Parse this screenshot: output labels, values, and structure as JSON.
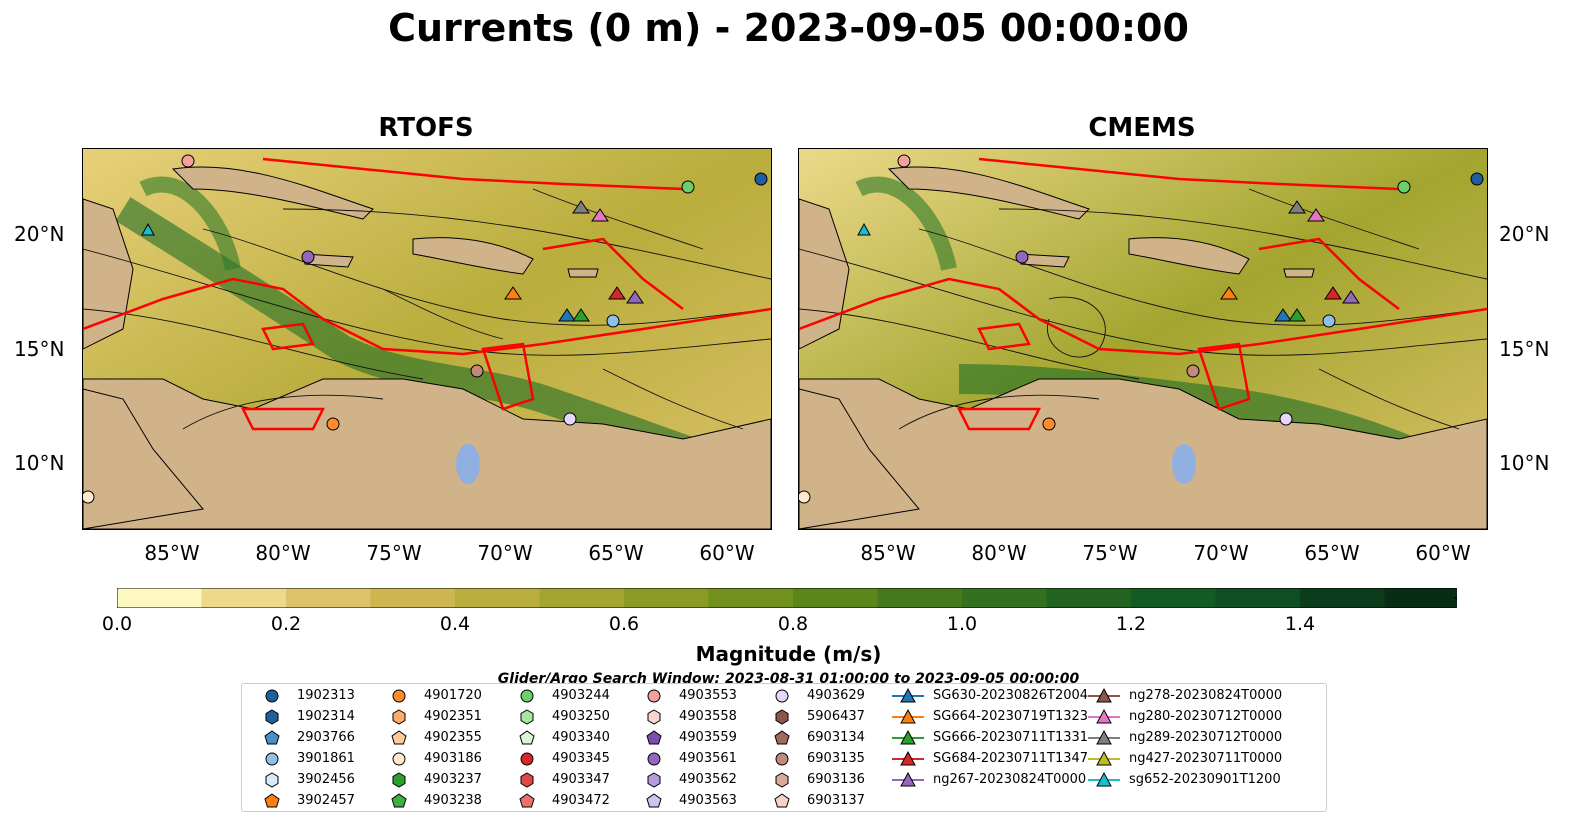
{
  "title": "Currents (0 m) - 2023-09-05 00:00:00",
  "panels": [
    {
      "title": "RTOFS"
    },
    {
      "title": "CMEMS"
    }
  ],
  "lat_labels": [
    "20°N",
    "15°N",
    "10°N"
  ],
  "lon_labels": [
    "85°W",
    "80°W",
    "75°W",
    "70°W",
    "65°W",
    "60°W"
  ],
  "colorbar": {
    "label": "Magnitude (m/s)",
    "ticks": [
      "0.0",
      "0.2",
      "0.4",
      "0.6",
      "0.8",
      "1.0",
      "1.2",
      "1.4"
    ],
    "colors": [
      "#fdf7c0",
      "#ecd98a",
      "#dcc26a",
      "#cdb64f",
      "#b9ad3c",
      "#a3a52f",
      "#8a9b24",
      "#72901e",
      "#5a861c",
      "#45791c",
      "#33701f",
      "#22641f",
      "#145a24",
      "#0f4d22",
      "#0b3d1c",
      "#082c16"
    ]
  },
  "search_window": "Glider/Argo Search Window: 2023-08-31 01:00:00 to 2023-09-05 00:00:00",
  "legend": [
    {
      "label": "1902313",
      "shape": "circle",
      "color": "#1f5f9e"
    },
    {
      "label": "1902314",
      "shape": "hexagon",
      "color": "#1f5f9e"
    },
    {
      "label": "2903766",
      "shape": "pentagon",
      "color": "#4a90c8"
    },
    {
      "label": "3901861",
      "shape": "circle",
      "color": "#8fc1e8"
    },
    {
      "label": "3902456",
      "shape": "hexagon",
      "color": "#d7ebfa"
    },
    {
      "label": "3902457",
      "shape": "pentagon",
      "color": "#ff7f0e"
    },
    {
      "label": "4901720",
      "shape": "circle",
      "color": "#ff8c2a"
    },
    {
      "label": "4902351",
      "shape": "hexagon",
      "color": "#ffab6a"
    },
    {
      "label": "4902355",
      "shape": "pentagon",
      "color": "#ffcc99"
    },
    {
      "label": "4903186",
      "shape": "circle",
      "color": "#ffe8cc"
    },
    {
      "label": "4903237",
      "shape": "hexagon",
      "color": "#2ca02c"
    },
    {
      "label": "4903238",
      "shape": "pentagon",
      "color": "#3cb043"
    },
    {
      "label": "4903244",
      "shape": "circle",
      "color": "#6ccf6c"
    },
    {
      "label": "4903250",
      "shape": "hexagon",
      "color": "#a8e6a0"
    },
    {
      "label": "4903340",
      "shape": "pentagon",
      "color": "#dcf5d4"
    },
    {
      "label": "4903345",
      "shape": "circle",
      "color": "#d62728"
    },
    {
      "label": "4903347",
      "shape": "hexagon",
      "color": "#e04848"
    },
    {
      "label": "4903472",
      "shape": "pentagon",
      "color": "#f07070"
    },
    {
      "label": "4903553",
      "shape": "circle",
      "color": "#f5a0a0"
    },
    {
      "label": "4903558",
      "shape": "hexagon",
      "color": "#fcd2d2"
    },
    {
      "label": "4903559",
      "shape": "pentagon",
      "color": "#7b4fb0"
    },
    {
      "label": "4903561",
      "shape": "circle",
      "color": "#9467bd"
    },
    {
      "label": "4903562",
      "shape": "hexagon",
      "color": "#b39bdc"
    },
    {
      "label": "4903563",
      "shape": "pentagon",
      "color": "#d2c2f0"
    },
    {
      "label": "4903629",
      "shape": "circle",
      "color": "#e6d6fa"
    },
    {
      "label": "5906437",
      "shape": "hexagon",
      "color": "#8c564b"
    },
    {
      "label": "6903134",
      "shape": "pentagon",
      "color": "#a06a5e"
    },
    {
      "label": "6903135",
      "shape": "circle",
      "color": "#c08a7c"
    },
    {
      "label": "6903136",
      "shape": "hexagon",
      "color": "#dba99a"
    },
    {
      "label": "6903137",
      "shape": "pentagon",
      "color": "#f5d2c8"
    },
    {
      "label": "SG630-20230826T2004",
      "shape": "triangle",
      "color": "#1f77b4"
    },
    {
      "label": "SG664-20230719T1323",
      "shape": "triangle",
      "color": "#ff7f0e"
    },
    {
      "label": "SG666-20230711T1331",
      "shape": "triangle",
      "color": "#2ca02c"
    },
    {
      "label": "SG684-20230711T1347",
      "shape": "triangle",
      "color": "#d62728"
    },
    {
      "label": "ng267-20230824T0000",
      "shape": "triangle",
      "color": "#9467bd"
    },
    {
      "label": "ng278-20230824T0000",
      "shape": "triangle",
      "color": "#8c564b"
    },
    {
      "label": "ng280-20230712T0000",
      "shape": "triangle",
      "color": "#e377c2"
    },
    {
      "label": "ng289-20230712T0000",
      "shape": "triangle",
      "color": "#7f7f7f"
    },
    {
      "label": "ng427-20230711T0000",
      "shape": "triangle",
      "color": "#bcbd22"
    },
    {
      "label": "sg652-20230901T1200",
      "shape": "triangle",
      "color": "#17becf"
    }
  ]
}
